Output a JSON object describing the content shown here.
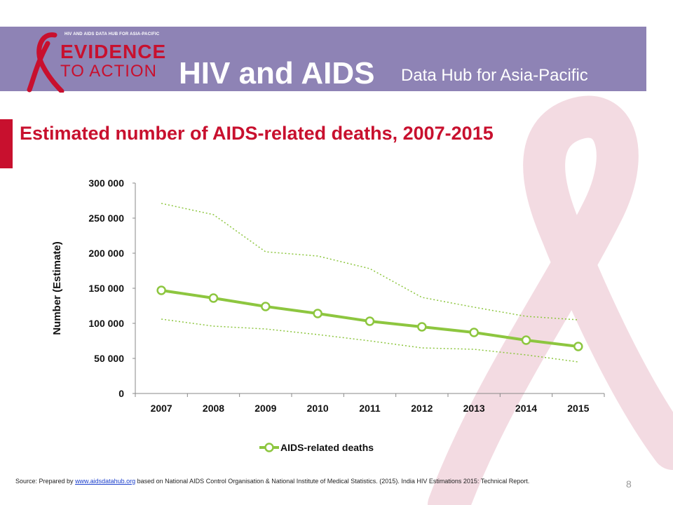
{
  "header": {
    "logo_small": "HIV AND AIDS DATA HUB FOR ASIA-PACIFIC",
    "logo_line1": "EVIDENCE",
    "logo_line2": "TO ACTION",
    "title": "HIV and AIDS",
    "subtitle": "Data Hub for Asia-Pacific"
  },
  "slide_title": "Estimated number of AIDS-related deaths, 2007-2015",
  "colors": {
    "banner": "#8e83b5",
    "accent": "#c8102e",
    "series": "#8dc63f",
    "ribbon": "#f3dbe2"
  },
  "chart_data": {
    "type": "line",
    "title": "",
    "xlabel": "",
    "ylabel": "Number (Estimate)",
    "ylim": [
      0,
      300000
    ],
    "yticks": [
      0,
      50000,
      100000,
      150000,
      200000,
      250000,
      300000
    ],
    "ytick_labels": [
      "0",
      "50 000",
      "100 000",
      "150 000",
      "200 000",
      "250 000",
      "300 000"
    ],
    "categories": [
      "2007",
      "2008",
      "2009",
      "2010",
      "2011",
      "2012",
      "2013",
      "2014",
      "2015"
    ],
    "series": [
      {
        "name": "AIDS-related deaths",
        "values": [
          147000,
          136000,
          124000,
          114000,
          103000,
          95000,
          87000,
          76000,
          67000
        ]
      }
    ],
    "upper_bound": [
      271000,
      255000,
      202000,
      196000,
      178000,
      137000,
      123000,
      110000,
      105000
    ],
    "lower_bound": [
      106000,
      96000,
      92000,
      84000,
      75000,
      65000,
      63000,
      55000,
      45000
    ],
    "legend": "bottom"
  },
  "footer": {
    "source_prefix": "Source: Prepared by ",
    "source_link": "www.aidsdatahub.org",
    "source_rest": " based on  National AIDS Control Organisation & National Institute of Medical Statistics. (2015). India HIV Estimations 2015: Technical Report.",
    "page_number": "8"
  }
}
